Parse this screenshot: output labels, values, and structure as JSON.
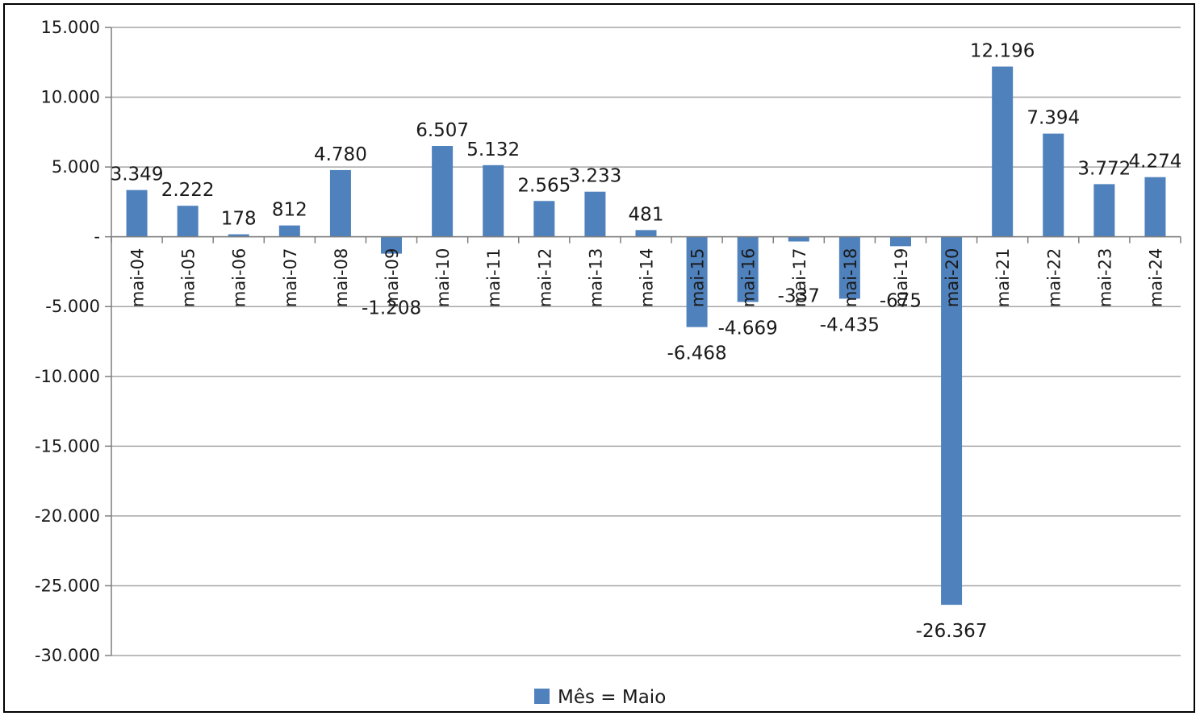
{
  "chart_data": {
    "type": "bar",
    "categories": [
      "mai-04",
      "mai-05",
      "mai-06",
      "mai-07",
      "mai-08",
      "mai-09",
      "mai-10",
      "mai-11",
      "mai-12",
      "mai-13",
      "mai-14",
      "mai-15",
      "mai-16",
      "mai-17",
      "mai-18",
      "mai-19",
      "mai-20",
      "mai-21",
      "mai-22",
      "mai-23",
      "mai-24"
    ],
    "series": [
      {
        "name": "Mês = Maio",
        "values": [
          3349,
          2222,
          178,
          812,
          4780,
          -1208,
          6507,
          5132,
          2565,
          3233,
          481,
          -6468,
          -4669,
          -337,
          -4435,
          -675,
          -26367,
          12196,
          7394,
          3772,
          4274
        ],
        "labels": [
          "3.349",
          "2.222",
          "178",
          "812",
          "4.780",
          "-1.208",
          "6.507",
          "5.132",
          "2.565",
          "3.233",
          "481",
          "-6.468",
          "-4.669",
          "-337",
          "-4.435",
          "-675",
          "-26.367",
          "12.196",
          "7.394",
          "3.772",
          "4.274"
        ]
      }
    ],
    "ylim": [
      -30000,
      15000
    ],
    "yticks": [
      15000,
      10000,
      5000,
      0,
      -5000,
      -10000,
      -15000,
      -20000,
      -25000,
      -30000
    ],
    "ytick_labels": [
      "15.000",
      "10.000",
      "5.000",
      "-",
      "-5.000",
      "-10.000",
      "-15.000",
      "-20.000",
      "-25.000",
      "-30.000"
    ],
    "grid": true,
    "legend_position": "bottom-center",
    "bar_color": "#4f81bd",
    "title": "",
    "xlabel": "",
    "ylabel": ""
  }
}
